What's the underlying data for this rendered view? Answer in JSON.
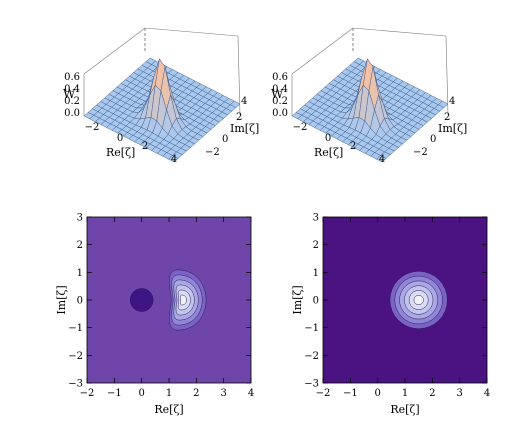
{
  "chart_data": [
    {
      "type": "surface3d",
      "zlabel": "W",
      "xlabel": "Re[ζ]",
      "ylabel": "Im[ζ]",
      "z_ticks": [
        "0.0",
        "0.2",
        "0.4",
        "0.6"
      ],
      "x_ticks": [
        "−2",
        "0",
        "2",
        "4"
      ],
      "y_ticks": [
        "−2",
        "0",
        "2",
        "4"
      ],
      "xlim": [
        -2,
        4
      ],
      "ylim": [
        -3,
        5
      ],
      "zlim": [
        0,
        0.65
      ],
      "peak": {
        "x": 1.5,
        "y": 0,
        "z": 0.6
      },
      "colors": {
        "surface": "#a9c8ef",
        "peak": "#f3c2a6",
        "mesh": "#3a5a86"
      }
    },
    {
      "type": "surface3d",
      "zlabel": "W",
      "xlabel": "Re[ζ]",
      "ylabel": "Im[ζ]",
      "z_ticks": [
        "0.0",
        "0.2",
        "0.4",
        "0.6"
      ],
      "x_ticks": [
        "−2",
        "0",
        "2",
        "4"
      ],
      "y_ticks": [
        "−2",
        "0",
        "2",
        "4"
      ],
      "xlim": [
        -2,
        4
      ],
      "ylim": [
        -3,
        5
      ],
      "zlim": [
        0,
        0.65
      ],
      "peak": {
        "x": 1.5,
        "y": 0,
        "z": 0.6
      },
      "colors": {
        "surface": "#a9c8ef",
        "peak": "#f3c2a6",
        "mesh": "#3a5a86"
      }
    },
    {
      "type": "contour",
      "xlabel": "Re[ζ]",
      "ylabel": "Im[ζ]",
      "x_ticks": [
        "−2",
        "−1",
        "0",
        "1",
        "2",
        "3",
        "4"
      ],
      "y_ticks": [
        "−3",
        "−2",
        "−1",
        "0",
        "1",
        "2",
        "3"
      ],
      "xlim": [
        -2,
        4
      ],
      "ylim": [
        -3,
        3
      ],
      "peak_center": [
        1.5,
        0
      ],
      "negative_region_center": [
        0,
        0
      ],
      "colors": {
        "background": "#6e45a8",
        "negative": "#3e1584",
        "levels": [
          "#7b62c4",
          "#8f86d6",
          "#a9a8e3",
          "#c1c4ec",
          "#d9dcf2",
          "#eff1f6"
        ]
      }
    },
    {
      "type": "contour",
      "xlabel": "Re[ζ]",
      "ylabel": "Im[ζ]",
      "x_ticks": [
        "−2",
        "−1",
        "0",
        "1",
        "2",
        "3",
        "4"
      ],
      "y_ticks": [
        "−3",
        "−2",
        "−1",
        "0",
        "1",
        "2",
        "3"
      ],
      "xlim": [
        -2,
        4
      ],
      "ylim": [
        -3,
        3
      ],
      "peak_center": [
        1.5,
        0
      ],
      "colors": {
        "background": "#4a1381",
        "levels": [
          "#7b62c4",
          "#8f86d6",
          "#a9a8e3",
          "#c1c4ec",
          "#d9dcf2",
          "#eff1f6"
        ]
      }
    }
  ]
}
